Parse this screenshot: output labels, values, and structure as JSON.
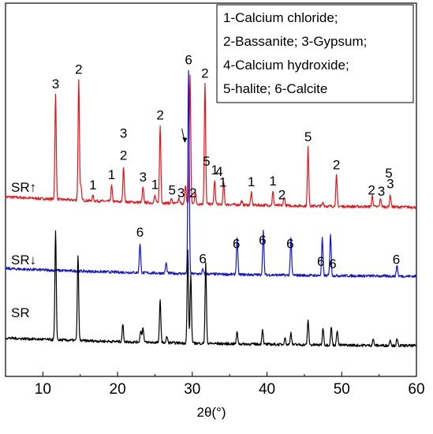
{
  "chart_data": {
    "type": "line",
    "xlabel": "2θ(°)",
    "ylabel": "",
    "xlim": [
      5,
      60
    ],
    "x_ticks": [
      10,
      20,
      30,
      40,
      50,
      60
    ],
    "x_tick_labels": [
      "10",
      "20",
      "30",
      "40",
      "50",
      "60"
    ],
    "y_ticks_shown": false,
    "grid": false,
    "legend_position": "top-right",
    "legend_lines": [
      "1-Calcium chloride;",
      "2-Bassanite; 3-Gypsum;",
      "4-Calcium hydroxide;",
      "5-halite; 6-Calcite"
    ],
    "series": [
      {
        "name": "SR↑",
        "color": "#e8141a",
        "baseline": 0.2,
        "peaks": [
          {
            "x": 11.7,
            "h": 1.7
          },
          {
            "x": 14.8,
            "h": 1.95
          },
          {
            "x": 15.1,
            "h": 0.22
          },
          {
            "x": 16.7,
            "h": 0.08
          },
          {
            "x": 19.2,
            "h": 0.26
          },
          {
            "x": 20.8,
            "h": 0.58
          },
          {
            "x": 23.4,
            "h": 0.24
          },
          {
            "x": 25.0,
            "h": 0.12
          },
          {
            "x": 25.7,
            "h": 1.25
          },
          {
            "x": 27.2,
            "h": 0.07
          },
          {
            "x": 28.2,
            "h": 0.08
          },
          {
            "x": 29.1,
            "h": 0.3
          },
          {
            "x": 29.7,
            "h": 2.1
          },
          {
            "x": 30.4,
            "h": 0.2
          },
          {
            "x": 31.7,
            "h": 1.95
          },
          {
            "x": 33.0,
            "h": 0.38
          },
          {
            "x": 34.2,
            "h": 0.35
          },
          {
            "x": 36.6,
            "h": 0.06
          },
          {
            "x": 37.9,
            "h": 0.2
          },
          {
            "x": 40.8,
            "h": 0.22
          },
          {
            "x": 42.3,
            "h": 0.15
          },
          {
            "x": 45.5,
            "h": 0.95
          },
          {
            "x": 47.5,
            "h": 0.06
          },
          {
            "x": 49.3,
            "h": 0.5
          },
          {
            "x": 54.1,
            "h": 0.18
          },
          {
            "x": 55.2,
            "h": 0.14
          },
          {
            "x": 56.5,
            "h": 0.2
          }
        ]
      },
      {
        "name": "SR↓",
        "color": "#1414d2",
        "baseline": 0.15,
        "peaks": [
          {
            "x": 23.0,
            "h": 0.48
          },
          {
            "x": 26.5,
            "h": 0.17
          },
          {
            "x": 29.5,
            "h": 3.3
          },
          {
            "x": 31.4,
            "h": 0.07
          },
          {
            "x": 36.0,
            "h": 0.6
          },
          {
            "x": 39.5,
            "h": 0.72
          },
          {
            "x": 43.2,
            "h": 0.62
          },
          {
            "x": 47.4,
            "h": 0.6
          },
          {
            "x": 48.5,
            "h": 0.68
          },
          {
            "x": 57.4,
            "h": 0.18
          }
        ]
      },
      {
        "name": "SR",
        "color": "#000000",
        "baseline": 0.15,
        "peaks": [
          {
            "x": 11.7,
            "h": 1.75
          },
          {
            "x": 14.7,
            "h": 1.4
          },
          {
            "x": 20.7,
            "h": 0.28
          },
          {
            "x": 23.1,
            "h": 0.2
          },
          {
            "x": 23.4,
            "h": 0.25
          },
          {
            "x": 25.7,
            "h": 0.7
          },
          {
            "x": 26.6,
            "h": 0.1
          },
          {
            "x": 29.4,
            "h": 1.5
          },
          {
            "x": 29.8,
            "h": 1.1
          },
          {
            "x": 31.8,
            "h": 1.3
          },
          {
            "x": 36.0,
            "h": 0.2
          },
          {
            "x": 39.4,
            "h": 0.25
          },
          {
            "x": 42.4,
            "h": 0.12
          },
          {
            "x": 43.2,
            "h": 0.2
          },
          {
            "x": 45.5,
            "h": 0.4
          },
          {
            "x": 47.5,
            "h": 0.28
          },
          {
            "x": 48.6,
            "h": 0.3
          },
          {
            "x": 49.4,
            "h": 0.25
          },
          {
            "x": 54.2,
            "h": 0.1
          },
          {
            "x": 56.5,
            "h": 0.1
          },
          {
            "x": 57.4,
            "h": 0.1
          }
        ]
      }
    ],
    "annotations": [
      {
        "text": "3",
        "x": 11.7,
        "series": "SR↑",
        "row": 0
      },
      {
        "text": "2",
        "x": 14.8,
        "series": "SR↑",
        "row": 0
      },
      {
        "text": "1",
        "x": 16.7,
        "series": "SR↑",
        "row": 0
      },
      {
        "text": "1",
        "x": 19.2,
        "series": "SR↑",
        "row": 0
      },
      {
        "text": "2",
        "x": 20.8,
        "series": "SR↑",
        "row": 0
      },
      {
        "text": "3",
        "x": 20.8,
        "series": "SR↑",
        "row": 1
      },
      {
        "text": "3",
        "x": 23.4,
        "series": "SR↑",
        "row": 0
      },
      {
        "text": "1",
        "x": 25.0,
        "series": "SR↑",
        "row": 0
      },
      {
        "text": "2",
        "x": 25.7,
        "series": "SR↑",
        "row": 0
      },
      {
        "text": "5",
        "x": 27.3,
        "series": "SR↑",
        "row": 0
      },
      {
        "text": "3",
        "x": 28.5,
        "series": "SR↑",
        "row": 0
      },
      {
        "text": "6",
        "x": 29.5,
        "series": "SR↓",
        "row": 0
      },
      {
        "text": "2",
        "x": 30.1,
        "series": "SR↑",
        "row": 0
      },
      {
        "text": "2",
        "x": 31.7,
        "series": "SR↑",
        "row": 0
      },
      {
        "text": "5",
        "x": 31.9,
        "series": "SR↑",
        "row": 1
      },
      {
        "text": "1",
        "x": 33.0,
        "series": "SR↑",
        "row": 0
      },
      {
        "text": "1",
        "x": 34.1,
        "series": "SR↑",
        "row": 0
      },
      {
        "text": "4",
        "x": 33.6,
        "series": "SR↑",
        "row": 1
      },
      {
        "text": "1",
        "x": 37.9,
        "series": "SR↑",
        "row": 0
      },
      {
        "text": "1",
        "x": 40.8,
        "series": "SR↑",
        "row": 0
      },
      {
        "text": "2",
        "x": 42.0,
        "series": "SR↑",
        "row": 0
      },
      {
        "text": "5",
        "x": 45.5,
        "series": "SR↑",
        "row": 0
      },
      {
        "text": "2",
        "x": 49.3,
        "series": "SR↑",
        "row": 0
      },
      {
        "text": "2",
        "x": 54.0,
        "series": "SR↑",
        "row": 0
      },
      {
        "text": "3",
        "x": 55.3,
        "series": "SR↑",
        "row": 0
      },
      {
        "text": "3",
        "x": 56.5,
        "series": "SR↑",
        "row": 0
      },
      {
        "text": "5",
        "x": 56.3,
        "series": "SR↑",
        "row": 1
      },
      {
        "text": "6",
        "x": 23.0,
        "series": "SR↓",
        "row": 0
      },
      {
        "text": "6",
        "x": 31.4,
        "series": "SR↓",
        "row": 0
      },
      {
        "text": "6",
        "x": 35.9,
        "series": "SR↓",
        "row": 0
      },
      {
        "text": "6",
        "x": 39.4,
        "series": "SR↓",
        "row": 0
      },
      {
        "text": "6",
        "x": 43.1,
        "series": "SR↓",
        "row": 0
      },
      {
        "text": "6",
        "x": 47.2,
        "series": "SR↓",
        "row": 0
      },
      {
        "text": "6",
        "x": 48.8,
        "series": "SR↓",
        "row": 0
      },
      {
        "text": "6",
        "x": 57.3,
        "series": "SR↓",
        "row": 0
      }
    ]
  }
}
